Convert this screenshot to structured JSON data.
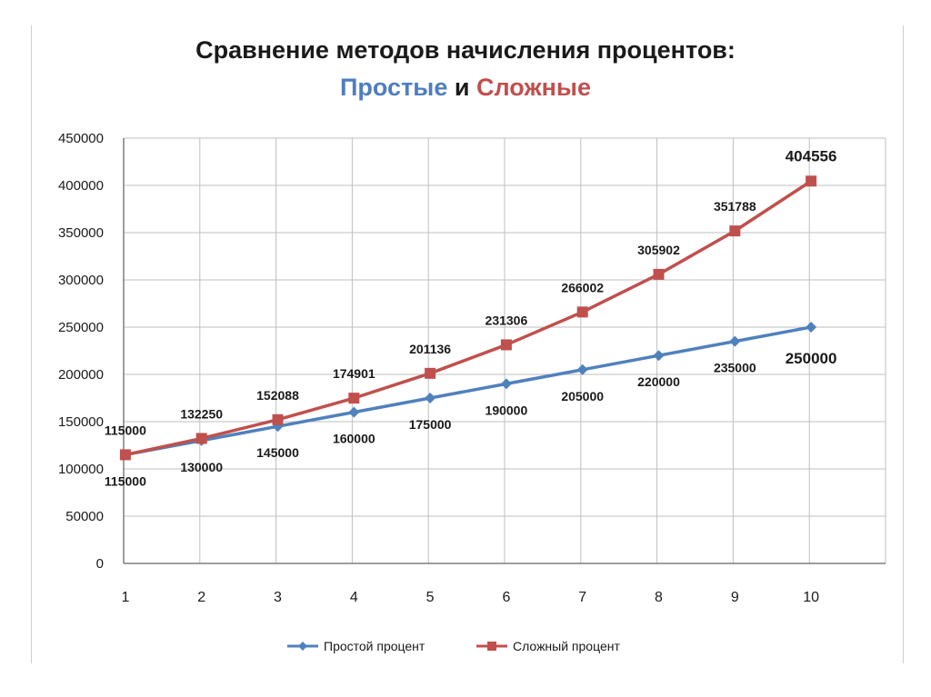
{
  "title": {
    "main": "Сравнение методов начисления процентов:",
    "simple": "Простые",
    "and": "и",
    "compound": "Сложные"
  },
  "colors": {
    "simple": "#4f81bd",
    "compound": "#c0504d",
    "grid": "#bfbfbf",
    "axis": "#7f7f7f"
  },
  "chart_data": {
    "type": "line",
    "categories": [
      "1",
      "2",
      "3",
      "4",
      "5",
      "6",
      "7",
      "8",
      "9",
      "10"
    ],
    "ylim": [
      0,
      450000
    ],
    "yticks": [
      "0",
      "50000",
      "100000",
      "150000",
      "200000",
      "250000",
      "300000",
      "350000",
      "400000",
      "450000"
    ],
    "grid": true,
    "legend_position": "bottom",
    "series": [
      {
        "name": "Простой процент",
        "marker": "diamond",
        "values": [
          115000,
          130000,
          145000,
          160000,
          175000,
          190000,
          205000,
          220000,
          235000,
          250000
        ],
        "labels": [
          "115000",
          "130000",
          "145000",
          "160000",
          "175000",
          "190000",
          "205000",
          "220000",
          "235000",
          "250000"
        ]
      },
      {
        "name": "Сложный процент",
        "marker": "square",
        "values": [
          115000,
          132250,
          152088,
          174901,
          201136,
          231306,
          266002,
          305902,
          351788,
          404556
        ],
        "labels": [
          "115000",
          "132250",
          "152088",
          "174901",
          "201136",
          "231306",
          "266002",
          "305902",
          "351788",
          "404556"
        ]
      }
    ]
  }
}
